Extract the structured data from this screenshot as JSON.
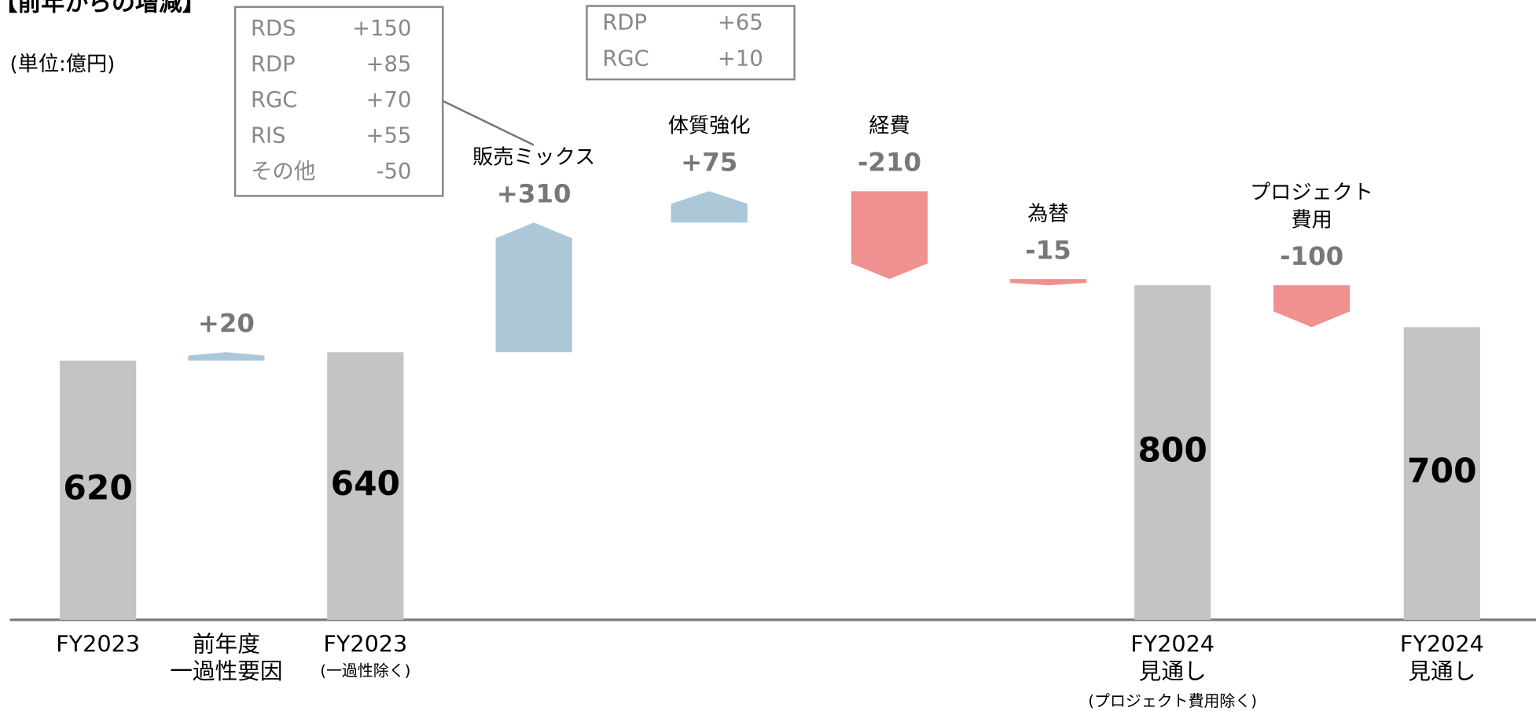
{
  "chart_data": {
    "type": "waterfall",
    "title": "【前年からの増減】",
    "unit": "(単位:億円)",
    "categories": [
      [
        "FY2023"
      ],
      [
        "前年度",
        "一過性要因"
      ],
      [
        "FY2023"
      ],
      [
        "販売ミックス"
      ],
      [
        "体質強化"
      ],
      [
        "経費"
      ],
      [
        "為替"
      ],
      [
        "FY2024",
        "見通し"
      ],
      [
        "プロジェクト",
        "費用"
      ],
      [
        "FY2024",
        "見通し"
      ]
    ],
    "category_subtexts": [
      null,
      null,
      "(一過性除く)",
      null,
      null,
      null,
      null,
      "(プロジェクト費用除く)",
      null,
      null
    ],
    "category_label_position": [
      "below",
      "below",
      "below",
      "above",
      "above",
      "above",
      "above",
      "below",
      "above",
      "below"
    ],
    "values": [
      620,
      20,
      640,
      310,
      75,
      -210,
      -15,
      800,
      -100,
      700
    ],
    "value_labels": [
      "620",
      "+20",
      "640",
      "+310",
      "+75",
      "-210",
      "-15",
      "800",
      "-100",
      "700"
    ],
    "bar_kinds": [
      "total",
      "increase",
      "total",
      "increase",
      "increase",
      "decrease",
      "decrease",
      "total",
      "decrease",
      "total"
    ],
    "colors": {
      "total": "#c4c4c4",
      "increase": "#abc7d8",
      "decrease": "#f09090"
    },
    "ylim": [
      0,
      1482
    ],
    "breakdowns": [
      {
        "rows": [
          [
            "RDS",
            "+150"
          ],
          [
            "RDP",
            "+85"
          ],
          [
            "RGC",
            "+70"
          ],
          [
            "RIS",
            "+55"
          ],
          [
            "その他",
            "-50"
          ]
        ]
      },
      {
        "rows": [
          [
            "RDP",
            "+65"
          ],
          [
            "RGC",
            "+10"
          ]
        ]
      }
    ]
  }
}
